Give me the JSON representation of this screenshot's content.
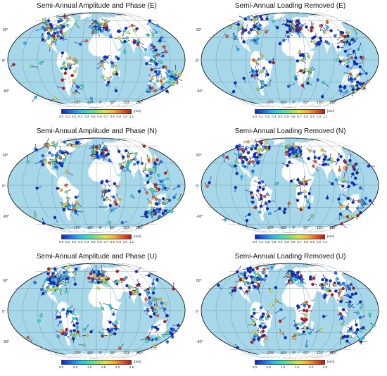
{
  "colors": {
    "ocean": "#a6d8ea",
    "land": "#ffffff",
    "grid": "#6e7d86",
    "arrow": "#1a2a9c",
    "colormap": [
      "#0a2ac8",
      "#1a6bf0",
      "#22b8f0",
      "#2ee0c0",
      "#7ee06a",
      "#d8e63a",
      "#f8b428",
      "#f05a1c",
      "#c8140c"
    ]
  },
  "panels": [
    {
      "id": "p1",
      "title": "Semi-Annual Amplitude and Phase (E)",
      "lon_ticks": [
        "-120°",
        "-60°",
        "0°",
        "60°",
        "120°",
        "180°"
      ],
      "lat_ticks": [
        "60°",
        "0°",
        "-60°"
      ],
      "colorbar": {
        "unit": "[mm]",
        "ticks": [
          "0.0",
          "0.1",
          "0.2",
          "0.3",
          "0.4",
          "0.5",
          "0.6",
          "0.7",
          "0.8",
          "0.9",
          "1.0",
          "1.1"
        ],
        "range": [
          0,
          1.1
        ]
      }
    },
    {
      "id": "p2",
      "title": "Semi-Annual Loading Removed (E)",
      "lon_ticks": [
        "-120°",
        "-60°",
        "0°",
        "60°",
        "120°",
        "180°"
      ],
      "lat_ticks": [
        "60°",
        "0°",
        "-60°"
      ],
      "colorbar": {
        "unit": "[mm]",
        "ticks": [
          "0.0",
          "0.1",
          "0.2",
          "0.3",
          "0.4",
          "0.5",
          "0.6",
          "0.7",
          "0.8",
          "0.9",
          "1.0",
          "1.1"
        ],
        "range": [
          0,
          1.1
        ]
      }
    },
    {
      "id": "p3",
      "title": "Semi-Annual Amplitude and Phase (N)",
      "lon_ticks": [
        "-120°",
        "-60°",
        "0°",
        "60°",
        "120°",
        "180°"
      ],
      "lat_ticks": [
        "60°",
        "0°",
        "-60°"
      ],
      "colorbar": {
        "unit": "[mm]",
        "ticks": [
          "0.0",
          "0.1",
          "0.2",
          "0.3",
          "0.4",
          "0.5",
          "0.6",
          "0.7",
          "0.8",
          "0.9",
          "1.0",
          "1.1"
        ],
        "range": [
          0,
          1.1
        ]
      }
    },
    {
      "id": "p4",
      "title": "Semi-Annual Loading Removed (N)",
      "lon_ticks": [
        "-120°",
        "-60°",
        "0°",
        "60°",
        "120°",
        "180°"
      ],
      "lat_ticks": [
        "60°",
        "0°",
        "-60°"
      ],
      "colorbar": {
        "unit": "[mm]",
        "ticks": [
          "0.0",
          "0.1",
          "0.2",
          "0.3",
          "0.4",
          "0.5",
          "0.6",
          "0.7",
          "0.8",
          "0.9",
          "1.0",
          "1.1"
        ],
        "range": [
          0,
          1.1
        ]
      }
    },
    {
      "id": "p5",
      "title": "Semi-Annual Amplitude and Phase (U)",
      "lon_ticks": [
        "-120°",
        "-60°",
        "0°",
        "60°",
        "120°",
        "180°"
      ],
      "lat_ticks": [
        "60°",
        "0°",
        "-60°"
      ],
      "colorbar": {
        "unit": "[mm]",
        "ticks": [
          "0.0",
          "0.5",
          "1.0",
          "1.5",
          "2.0",
          "2.5"
        ],
        "range": [
          0,
          2.5
        ]
      }
    },
    {
      "id": "p6",
      "title": "Semi-Annual Loading Removed (U)",
      "lon_ticks": [
        "-120°",
        "-60°",
        "0°",
        "60°",
        "120°",
        "180°"
      ],
      "lat_ticks": [
        "60°",
        "0°",
        "-60°"
      ],
      "colorbar": {
        "unit": "[mm]",
        "ticks": [
          "0.0",
          "0.5",
          "1.0",
          "1.5",
          "2.0",
          "2.5"
        ],
        "range": [
          0,
          2.5
        ]
      }
    }
  ]
}
